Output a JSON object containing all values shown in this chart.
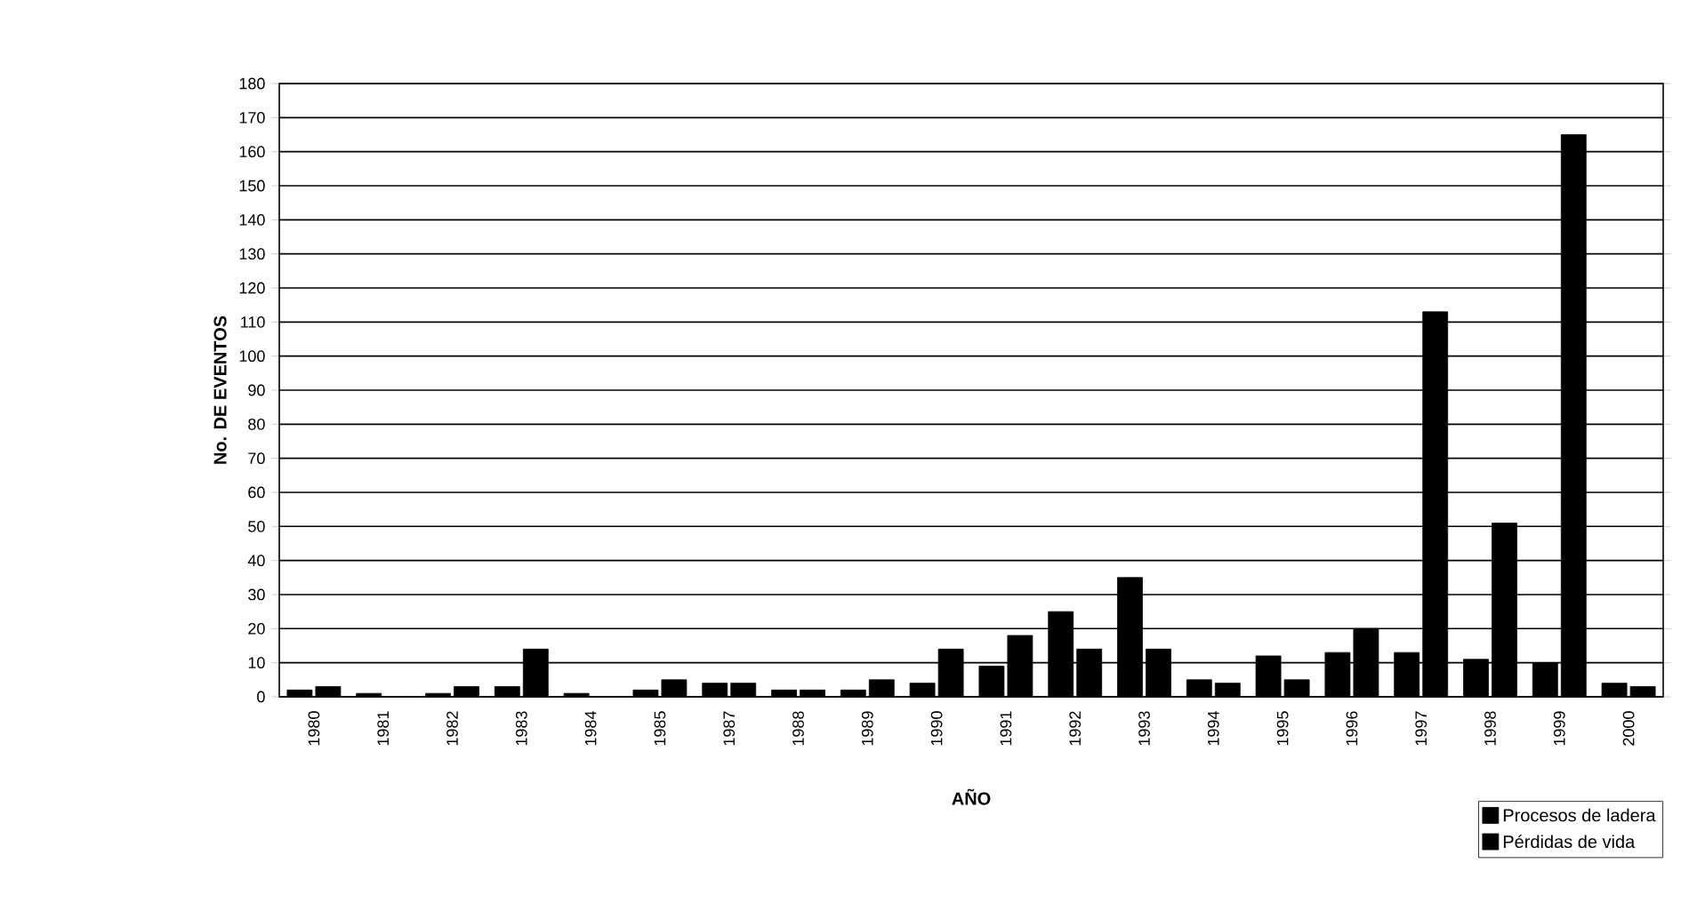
{
  "chart_data": {
    "type": "bar",
    "xlabel": "AÑO",
    "ylabel": "No. DE EVENTOS",
    "categories": [
      "1980",
      "1981",
      "1982",
      "1983",
      "1984",
      "1985",
      "1987",
      "1988",
      "1989",
      "1990",
      "1991",
      "1992",
      "1993",
      "1994",
      "1995",
      "1996",
      "1997",
      "1998",
      "1999",
      "2000"
    ],
    "series": [
      {
        "name": "Procesos de ladera",
        "color": "#000000",
        "values": [
          2,
          1,
          1,
          3,
          1,
          2,
          4,
          2,
          2,
          4,
          9,
          25,
          35,
          5,
          12,
          13,
          13,
          11,
          10,
          4
        ]
      },
      {
        "name": "Pérdidas de vida",
        "color": "#000000",
        "values": [
          3,
          0,
          3,
          14,
          0,
          5,
          4,
          2,
          5,
          14,
          18,
          14,
          14,
          4,
          5,
          20,
          113,
          51,
          165,
          3
        ]
      }
    ],
    "ylim": [
      0,
      180
    ],
    "yticks": [
      0,
      10,
      20,
      30,
      40,
      50,
      60,
      70,
      80,
      90,
      100,
      110,
      120,
      130,
      140,
      150,
      160,
      170,
      180
    ],
    "grid": "y",
    "legend": "bottom right"
  }
}
